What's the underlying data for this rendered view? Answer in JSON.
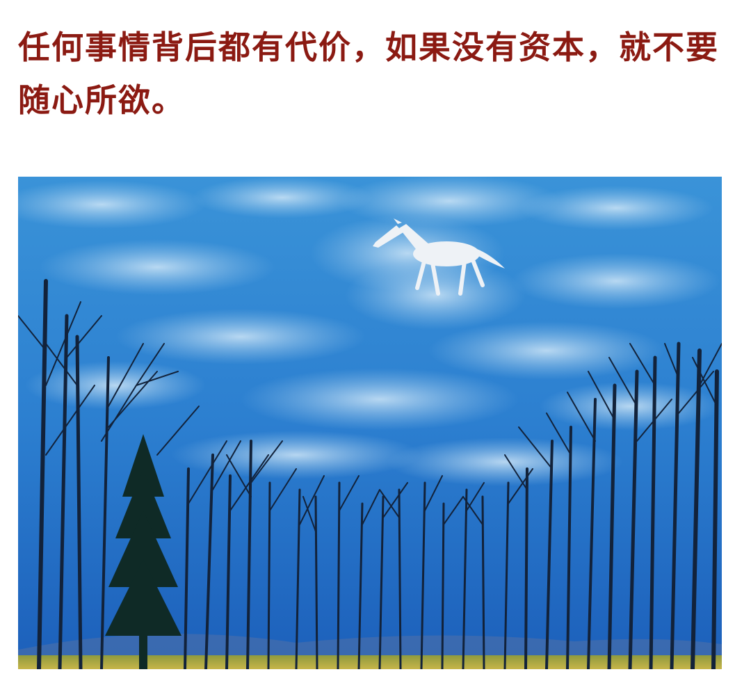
{
  "quote": {
    "text": "任何事情背后都有代价，如果没有资本，就不要随心所欲。",
    "color": "#8b1a12"
  },
  "painting": {
    "sky_top_color": "#2f86cf",
    "sky_bottom_color": "#1f66c4",
    "tree_color": "#12223a",
    "ground_color": "#b8a642"
  }
}
